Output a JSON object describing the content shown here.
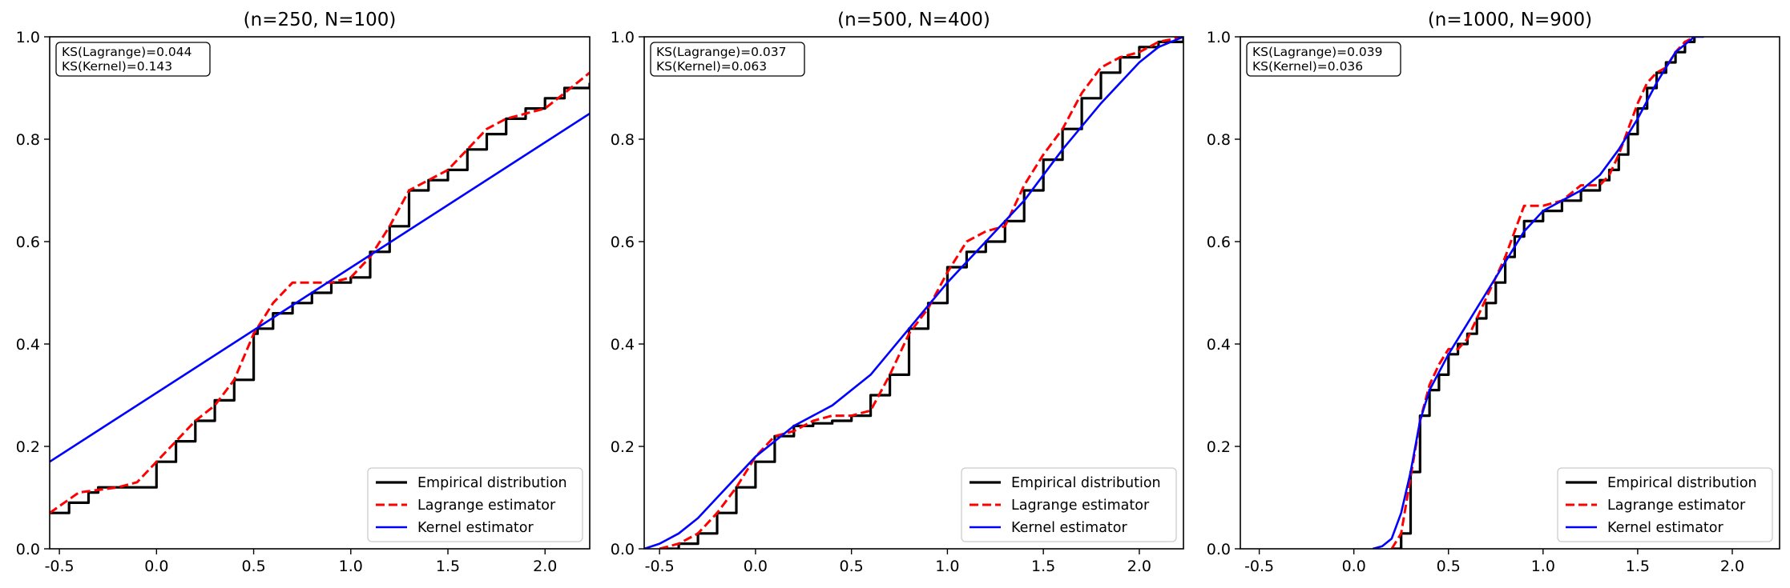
{
  "colors": {
    "empirical": "#000000",
    "lagrange": "#ff0000",
    "kernel": "#0000ff",
    "frame": "#000000"
  },
  "legend_labels": {
    "empirical": "Empirical distribution",
    "lagrange": "Lagrange estimator",
    "kernel": "Kernel estimator"
  },
  "chart_data": [
    {
      "type": "line",
      "title": "(n=250, N=100)",
      "xlim": [
        -0.55,
        2.23
      ],
      "ylim": [
        0,
        1
      ],
      "xticks": [
        -0.5,
        0.0,
        0.5,
        1.0,
        1.5,
        2.0
      ],
      "xtick_labels": [
        "-0.5",
        "0.0",
        "0.5",
        "1.0",
        "1.5",
        "2.0"
      ],
      "yticks": [
        0,
        0.2,
        0.4,
        0.6,
        0.8,
        1.0
      ],
      "ytick_labels": [
        "0.0",
        "0.2",
        "0.4",
        "0.6",
        "0.8",
        "1.0"
      ],
      "stats": {
        "ks_lagrange": "KS(Lagrange)=0.044",
        "ks_kernel": "KS(Kernel)=0.143"
      },
      "legend_position": "lower-right",
      "series": [
        {
          "name": "Empirical distribution",
          "style": "step",
          "x": [
            -0.55,
            -0.45,
            -0.35,
            -0.3,
            -0.1,
            0.0,
            0.1,
            0.2,
            0.3,
            0.4,
            0.5,
            0.52,
            0.6,
            0.7,
            0.8,
            0.9,
            1.0,
            1.1,
            1.2,
            1.3,
            1.4,
            1.5,
            1.6,
            1.7,
            1.8,
            1.9,
            2.0,
            2.1,
            2.23
          ],
          "y": [
            0.07,
            0.09,
            0.11,
            0.12,
            0.12,
            0.17,
            0.21,
            0.25,
            0.29,
            0.33,
            0.42,
            0.43,
            0.46,
            0.48,
            0.5,
            0.52,
            0.53,
            0.58,
            0.63,
            0.7,
            0.72,
            0.74,
            0.78,
            0.81,
            0.84,
            0.86,
            0.88,
            0.9,
            0.91
          ]
        },
        {
          "name": "Lagrange estimator",
          "style": "dashed",
          "x": [
            -0.55,
            -0.4,
            -0.2,
            -0.1,
            0.0,
            0.1,
            0.2,
            0.3,
            0.4,
            0.5,
            0.6,
            0.7,
            0.8,
            0.9,
            1.0,
            1.1,
            1.2,
            1.3,
            1.4,
            1.5,
            1.6,
            1.7,
            1.8,
            1.9,
            2.0,
            2.1,
            2.23
          ],
          "y": [
            0.07,
            0.11,
            0.12,
            0.13,
            0.17,
            0.21,
            0.25,
            0.28,
            0.33,
            0.42,
            0.48,
            0.52,
            0.52,
            0.52,
            0.53,
            0.57,
            0.63,
            0.7,
            0.72,
            0.74,
            0.78,
            0.82,
            0.84,
            0.85,
            0.86,
            0.89,
            0.93
          ]
        },
        {
          "name": "Kernel estimator",
          "style": "solid",
          "x": [
            -0.55,
            2.23
          ],
          "y": [
            0.17,
            0.85
          ]
        }
      ]
    },
    {
      "type": "line",
      "title": "(n=500, N=400)",
      "xlim": [
        -0.58,
        2.23
      ],
      "ylim": [
        0,
        1
      ],
      "xticks": [
        -0.5,
        0.0,
        0.5,
        1.0,
        1.5,
        2.0
      ],
      "xtick_labels": [
        "-0.5",
        "0.0",
        "0.5",
        "1.0",
        "1.5",
        "2.0"
      ],
      "yticks": [
        0,
        0.2,
        0.4,
        0.6,
        0.8,
        1.0
      ],
      "ytick_labels": [
        "0.0",
        "0.2",
        "0.4",
        "0.6",
        "0.8",
        "1.0"
      ],
      "stats": {
        "ks_lagrange": "KS(Lagrange)=0.037",
        "ks_kernel": "KS(Kernel)=0.063"
      },
      "legend_position": "lower-right",
      "series": [
        {
          "name": "Empirical distribution",
          "style": "step",
          "x": [
            -0.5,
            -0.4,
            -0.3,
            -0.2,
            -0.1,
            0.0,
            0.1,
            0.2,
            0.3,
            0.4,
            0.5,
            0.6,
            0.7,
            0.8,
            0.9,
            1.0,
            1.1,
            1.2,
            1.3,
            1.4,
            1.5,
            1.6,
            1.7,
            1.8,
            1.9,
            2.0,
            2.1,
            2.23
          ],
          "y": [
            0.0,
            0.01,
            0.03,
            0.07,
            0.12,
            0.17,
            0.22,
            0.24,
            0.245,
            0.25,
            0.26,
            0.3,
            0.34,
            0.43,
            0.48,
            0.55,
            0.58,
            0.6,
            0.64,
            0.7,
            0.76,
            0.82,
            0.88,
            0.93,
            0.96,
            0.98,
            0.99,
            1.0
          ]
        },
        {
          "name": "Lagrange estimator",
          "style": "dashed",
          "x": [
            -0.5,
            -0.4,
            -0.3,
            -0.2,
            -0.1,
            0.0,
            0.1,
            0.2,
            0.3,
            0.4,
            0.5,
            0.6,
            0.7,
            0.8,
            0.9,
            1.0,
            1.1,
            1.2,
            1.3,
            1.4,
            1.5,
            1.6,
            1.7,
            1.8,
            1.9,
            2.0,
            2.1,
            2.23
          ],
          "y": [
            0.0,
            0.01,
            0.03,
            0.07,
            0.12,
            0.18,
            0.22,
            0.23,
            0.25,
            0.26,
            0.26,
            0.27,
            0.34,
            0.42,
            0.47,
            0.54,
            0.6,
            0.62,
            0.63,
            0.71,
            0.77,
            0.82,
            0.89,
            0.94,
            0.96,
            0.97,
            0.99,
            1.0
          ]
        },
        {
          "name": "Kernel estimator",
          "style": "solid",
          "x": [
            -0.58,
            -0.5,
            -0.4,
            -0.3,
            -0.2,
            0.0,
            0.2,
            0.4,
            0.6,
            0.8,
            1.0,
            1.2,
            1.4,
            1.6,
            1.8,
            2.0,
            2.1,
            2.23
          ],
          "y": [
            0.0,
            0.01,
            0.03,
            0.06,
            0.1,
            0.18,
            0.24,
            0.28,
            0.34,
            0.43,
            0.52,
            0.6,
            0.68,
            0.78,
            0.87,
            0.95,
            0.98,
            1.0
          ]
        }
      ]
    },
    {
      "type": "line",
      "title": "(n=1000, N=900)",
      "xlim": [
        -0.6,
        2.25
      ],
      "ylim": [
        0,
        1
      ],
      "xticks": [
        -0.5,
        0.0,
        0.5,
        1.0,
        1.5,
        2.0
      ],
      "xtick_labels": [
        "-0.5",
        "0.0",
        "0.5",
        "1.0",
        "1.5",
        "2.0"
      ],
      "yticks": [
        0,
        0.2,
        0.4,
        0.6,
        0.8,
        1.0
      ],
      "ytick_labels": [
        "0.0",
        "0.2",
        "0.4",
        "0.6",
        "0.8",
        "1.0"
      ],
      "stats": {
        "ks_lagrange": "KS(Lagrange)=0.039",
        "ks_kernel": "KS(Kernel)=0.036"
      },
      "legend_position": "lower-right",
      "series": [
        {
          "name": "Empirical distribution",
          "style": "step",
          "x": [
            0.2,
            0.25,
            0.3,
            0.35,
            0.4,
            0.45,
            0.5,
            0.55,
            0.6,
            0.65,
            0.7,
            0.75,
            0.8,
            0.85,
            0.9,
            1.0,
            1.1,
            1.2,
            1.3,
            1.35,
            1.4,
            1.45,
            1.5,
            1.55,
            1.6,
            1.65,
            1.7,
            1.75,
            1.8
          ],
          "y": [
            0.0,
            0.03,
            0.15,
            0.26,
            0.31,
            0.34,
            0.38,
            0.4,
            0.42,
            0.45,
            0.48,
            0.52,
            0.57,
            0.61,
            0.64,
            0.66,
            0.68,
            0.7,
            0.72,
            0.74,
            0.77,
            0.81,
            0.86,
            0.9,
            0.93,
            0.95,
            0.97,
            0.99,
            1.0
          ]
        },
        {
          "name": "Lagrange estimator",
          "style": "dashed",
          "x": [
            0.2,
            0.25,
            0.3,
            0.35,
            0.4,
            0.45,
            0.5,
            0.55,
            0.6,
            0.65,
            0.7,
            0.75,
            0.8,
            0.85,
            0.9,
            1.0,
            1.1,
            1.2,
            1.3,
            1.35,
            1.4,
            1.45,
            1.5,
            1.55,
            1.6,
            1.65,
            1.7,
            1.75,
            1.8
          ],
          "y": [
            0.0,
            0.03,
            0.14,
            0.25,
            0.32,
            0.36,
            0.39,
            0.39,
            0.41,
            0.45,
            0.49,
            0.53,
            0.57,
            0.62,
            0.67,
            0.67,
            0.68,
            0.71,
            0.71,
            0.73,
            0.77,
            0.82,
            0.87,
            0.91,
            0.93,
            0.94,
            0.97,
            0.99,
            1.0
          ]
        },
        {
          "name": "Kernel estimator",
          "style": "solid",
          "x": [
            0.1,
            0.15,
            0.2,
            0.25,
            0.3,
            0.35,
            0.4,
            0.5,
            0.6,
            0.7,
            0.8,
            0.9,
            1.0,
            1.1,
            1.2,
            1.3,
            1.4,
            1.5,
            1.6,
            1.7,
            1.8,
            1.85
          ],
          "y": [
            0.0,
            0.005,
            0.02,
            0.07,
            0.15,
            0.25,
            0.31,
            0.38,
            0.44,
            0.5,
            0.56,
            0.62,
            0.66,
            0.68,
            0.7,
            0.73,
            0.78,
            0.84,
            0.91,
            0.97,
            1.0,
            1.0
          ]
        }
      ]
    }
  ]
}
